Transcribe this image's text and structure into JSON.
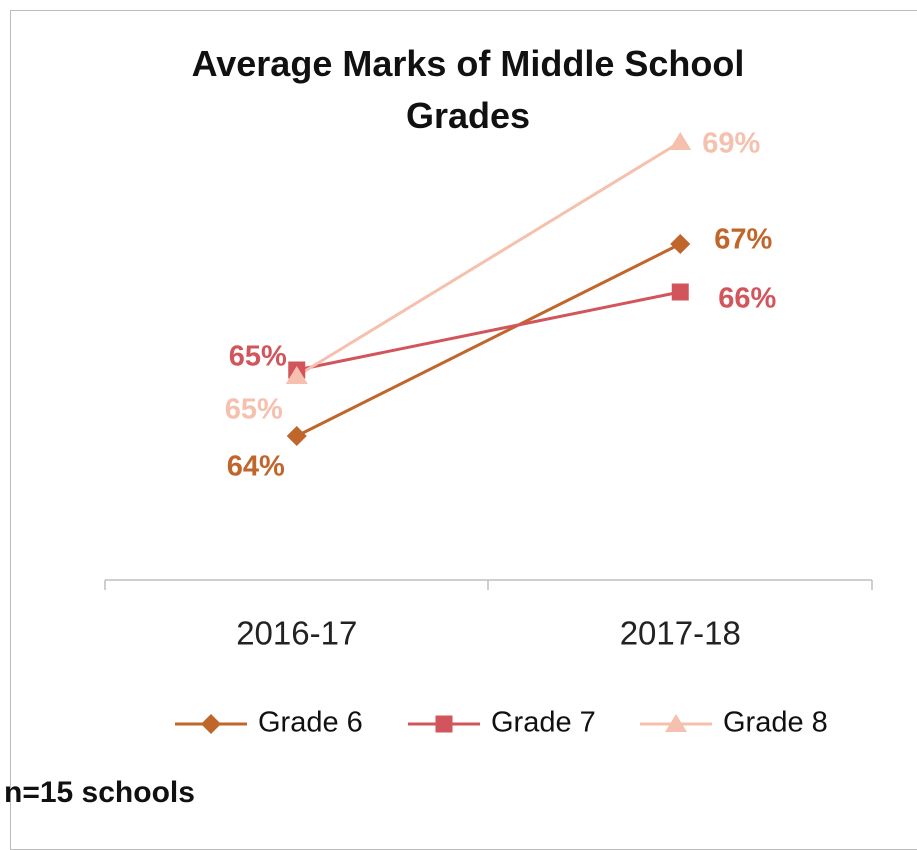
{
  "chart_data": {
    "type": "line",
    "title": "Average Marks of Middle School Grades",
    "annotation": "n=15 schools",
    "categories": [
      "2016-17",
      "2017-18"
    ],
    "ylim": [
      61.6,
      69.1
    ],
    "legend": "bottom",
    "series": [
      {
        "name": "Grade 6",
        "color": "#c0662b",
        "marker": "diamond",
        "values": [
          64.0,
          67.2
        ],
        "value_labels": [
          "64%",
          "67%"
        ]
      },
      {
        "name": "Grade 7",
        "color": "#d2555b",
        "marker": "square",
        "values": [
          65.1,
          66.4
        ],
        "value_labels": [
          "65%",
          "66%"
        ]
      },
      {
        "name": "Grade 8",
        "color": "#f5c0ad",
        "marker": "triangle",
        "values": [
          65.0,
          68.9
        ],
        "value_labels": [
          "65%",
          "69%"
        ]
      }
    ]
  }
}
